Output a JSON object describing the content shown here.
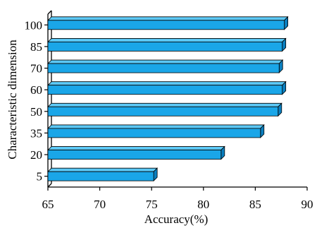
{
  "chart_data": {
    "type": "bar",
    "orientation": "horizontal",
    "style": "3d",
    "categories": [
      "5",
      "20",
      "35",
      "50",
      "60",
      "70",
      "85",
      "100"
    ],
    "values": [
      75.2,
      81.7,
      85.5,
      87.2,
      87.6,
      87.3,
      87.6,
      87.8
    ],
    "xlabel": "Accuracy(%)",
    "ylabel": "Characteristic dimension",
    "xlim": [
      65,
      90
    ],
    "xticks": [
      "65",
      "70",
      "75",
      "80",
      "85",
      "90"
    ],
    "grid": false,
    "bar_color": "#1aa6e8",
    "bar_top_color": "#5cc8f5",
    "bar_side_color": "#0b7fbf"
  }
}
